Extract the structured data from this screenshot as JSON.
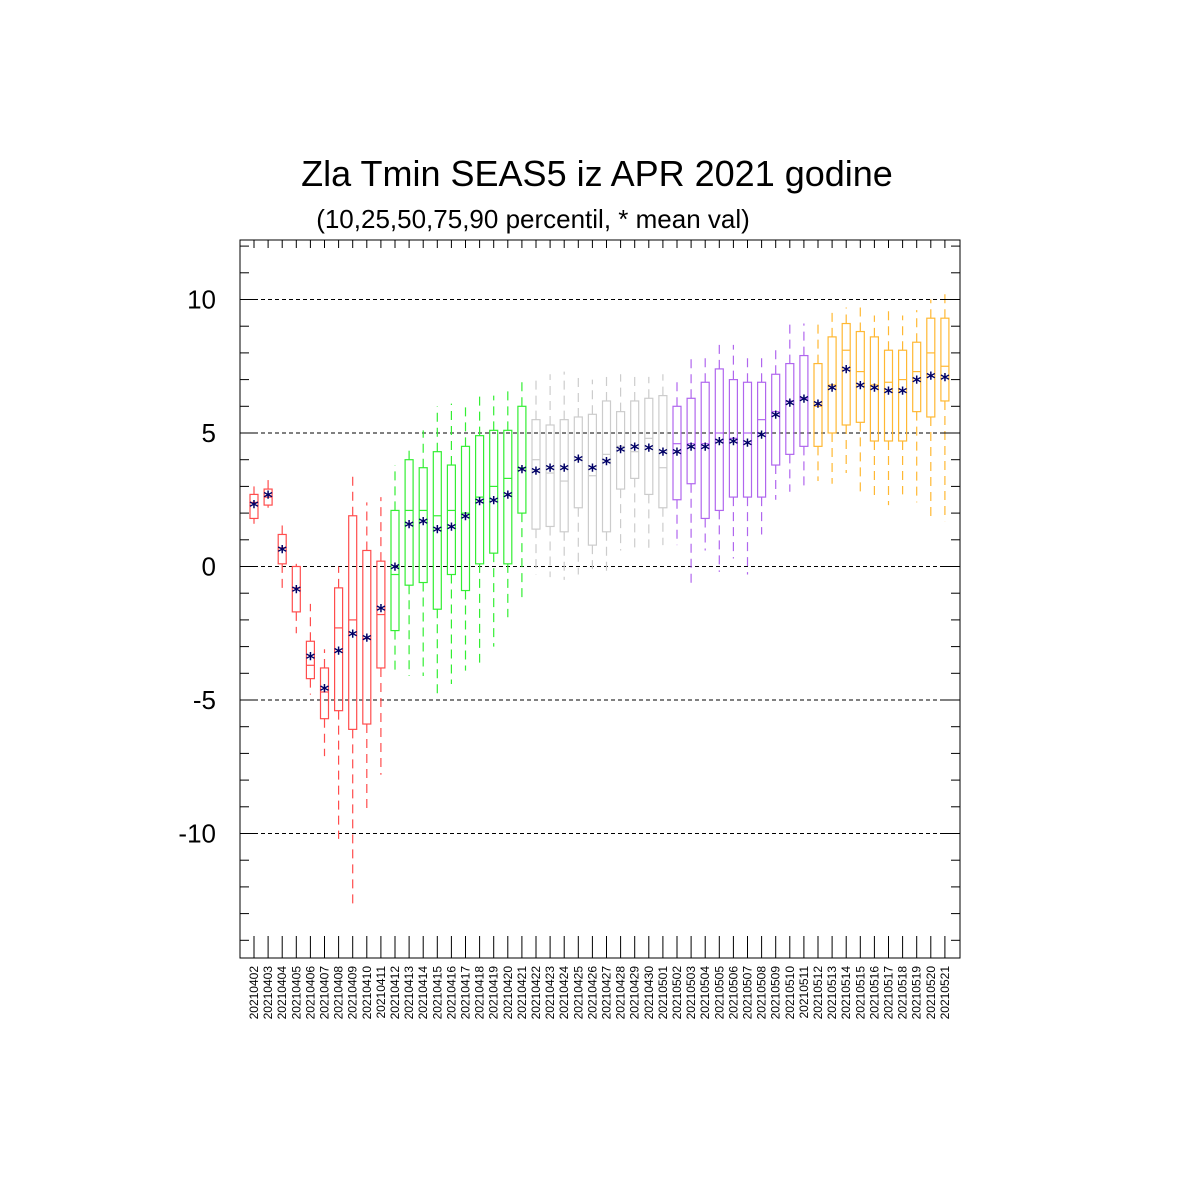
{
  "chart_data": {
    "type": "box",
    "title": "Zla Tmin SEAS5 iz APR 2021 godine",
    "subtitle": "(10,25,50,75,90 percentil, * mean val)",
    "xlabel": "",
    "ylabel": "",
    "ylim": [
      -14.2,
      12.2
    ],
    "yticks": [
      -10,
      -5,
      0,
      5,
      10
    ],
    "ytick_labels": [
      "-10",
      "-5",
      "0",
      "5",
      "10"
    ],
    "grid": "dashed horizontal at major ticks",
    "mean_marker": "*",
    "colors": {
      "red": "#ff4d4d",
      "green": "#33ee33",
      "gray": "#cccccc",
      "purple": "#b066ee",
      "orange": "#ffb833",
      "mean": "#000066"
    },
    "categories": [
      "20210402",
      "20210403",
      "20210404",
      "20210405",
      "20210406",
      "20210407",
      "20210408",
      "20210409",
      "20210410",
      "20210411",
      "20210412",
      "20210413",
      "20210414",
      "20210415",
      "20210416",
      "20210417",
      "20210418",
      "20210419",
      "20210420",
      "20210421",
      "20210422",
      "20210423",
      "20210424",
      "20210425",
      "20210426",
      "20210427",
      "20210428",
      "20210429",
      "20210430",
      "20210501",
      "20210502",
      "20210503",
      "20210504",
      "20210505",
      "20210506",
      "20210507",
      "20210508",
      "20210509",
      "20210510",
      "20210511",
      "20210512",
      "20210513",
      "20210514",
      "20210515",
      "20210516",
      "20210517",
      "20210518",
      "20210519",
      "20210520",
      "20210521"
    ],
    "colorGroups": [
      "red",
      "red",
      "red",
      "red",
      "red",
      "red",
      "red",
      "red",
      "red",
      "red",
      "green",
      "green",
      "green",
      "green",
      "green",
      "green",
      "green",
      "green",
      "green",
      "green",
      "gray",
      "gray",
      "gray",
      "gray",
      "gray",
      "gray",
      "gray",
      "gray",
      "gray",
      "gray",
      "purple",
      "purple",
      "purple",
      "purple",
      "purple",
      "purple",
      "purple",
      "purple",
      "purple",
      "purple",
      "orange",
      "orange",
      "orange",
      "orange",
      "orange",
      "orange",
      "orange",
      "orange",
      "orange",
      "orange"
    ],
    "p10": [
      1.6,
      2.2,
      -0.9,
      -2.5,
      -4.8,
      -7.1,
      -10.2,
      -12.7,
      -9.1,
      -7.8,
      -3.9,
      -4.1,
      -4.1,
      -4.8,
      -4.4,
      -3.9,
      -3.6,
      -3.0,
      -1.9,
      -1.2,
      -0.3,
      -0.4,
      -0.5,
      -0.3,
      -0.1,
      -0.3,
      0.6,
      0.7,
      0.7,
      0.8,
      0.8,
      -0.8,
      0.6,
      -0.2,
      0.3,
      -0.3,
      1.2,
      2.5,
      2.8,
      3.0,
      3.2,
      3.1,
      3.5,
      2.6,
      2.5,
      2.3,
      2.7,
      2.4,
      1.8,
      1.7
    ],
    "p25": [
      1.8,
      2.3,
      0.1,
      -1.7,
      -4.2,
      -5.7,
      -5.4,
      -6.1,
      -5.9,
      -3.8,
      -2.4,
      -0.7,
      -0.6,
      -1.6,
      -0.3,
      -0.9,
      0.1,
      0.5,
      0.1,
      2.0,
      1.4,
      1.5,
      1.3,
      2.2,
      0.8,
      1.3,
      2.9,
      3.3,
      2.7,
      2.2,
      2.5,
      3.1,
      1.8,
      2.1,
      2.6,
      2.6,
      2.6,
      3.8,
      4.2,
      4.5,
      4.5,
      5.0,
      5.3,
      5.4,
      4.7,
      4.7,
      4.7,
      5.8,
      5.6,
      6.2
    ],
    "p50": [
      2.4,
      2.6,
      0.7,
      -0.8,
      -3.7,
      -4.7,
      -2.3,
      -2.0,
      -2.7,
      -1.8,
      -0.3,
      2.1,
      2.1,
      1.9,
      2.1,
      2.0,
      2.6,
      3.0,
      3.3,
      3.7,
      4.0,
      3.5,
      3.2,
      4.0,
      3.4,
      4.2,
      4.5,
      4.3,
      4.8,
      3.7,
      4.6,
      4.6,
      4.6,
      5.0,
      4.8,
      5.0,
      5.5,
      5.8,
      6.2,
      6.3,
      6.0,
      6.8,
      8.1,
      7.3,
      6.8,
      6.9,
      7.0,
      7.3,
      8.0,
      7.5
    ],
    "p75": [
      2.7,
      2.9,
      1.2,
      0.0,
      -2.8,
      -3.8,
      -0.8,
      1.9,
      0.6,
      0.2,
      2.1,
      4.0,
      3.7,
      4.3,
      3.8,
      4.5,
      4.9,
      5.1,
      5.1,
      6.0,
      5.5,
      5.3,
      5.5,
      5.6,
      5.7,
      6.2,
      5.8,
      6.2,
      6.3,
      6.4,
      6.0,
      6.3,
      6.9,
      7.4,
      7.0,
      6.9,
      6.9,
      7.2,
      7.6,
      7.9,
      7.6,
      8.6,
      9.1,
      8.8,
      8.6,
      8.1,
      8.1,
      8.4,
      9.3,
      9.3
    ],
    "p90": [
      3.0,
      3.3,
      1.7,
      0.1,
      -1.4,
      -3.1,
      0.0,
      3.5,
      2.4,
      2.6,
      3.8,
      4.5,
      5.1,
      6.0,
      6.1,
      6.1,
      6.4,
      6.4,
      6.6,
      7.1,
      7.0,
      7.2,
      7.3,
      7.1,
      7.0,
      7.3,
      7.2,
      7.3,
      7.1,
      7.2,
      7.1,
      7.8,
      7.9,
      8.5,
      8.3,
      8.0,
      8.0,
      8.3,
      9.1,
      9.1,
      9.2,
      9.6,
      9.7,
      9.7,
      9.4,
      9.6,
      9.4,
      9.6,
      10.0,
      10.2
    ],
    "mean": [
      2.35,
      2.7,
      0.65,
      -0.85,
      -3.35,
      -4.55,
      -3.15,
      -2.5,
      -2.65,
      -1.55,
      0.0,
      1.6,
      1.7,
      1.4,
      1.5,
      1.9,
      2.45,
      2.5,
      2.7,
      3.65,
      3.6,
      3.7,
      3.7,
      4.05,
      3.7,
      3.95,
      4.4,
      4.5,
      4.45,
      4.3,
      4.3,
      4.5,
      4.5,
      4.7,
      4.7,
      4.65,
      4.95,
      5.7,
      6.15,
      6.3,
      6.1,
      6.7,
      7.4,
      6.8,
      6.7,
      6.6,
      6.6,
      7.0,
      7.15,
      7.1
    ]
  }
}
